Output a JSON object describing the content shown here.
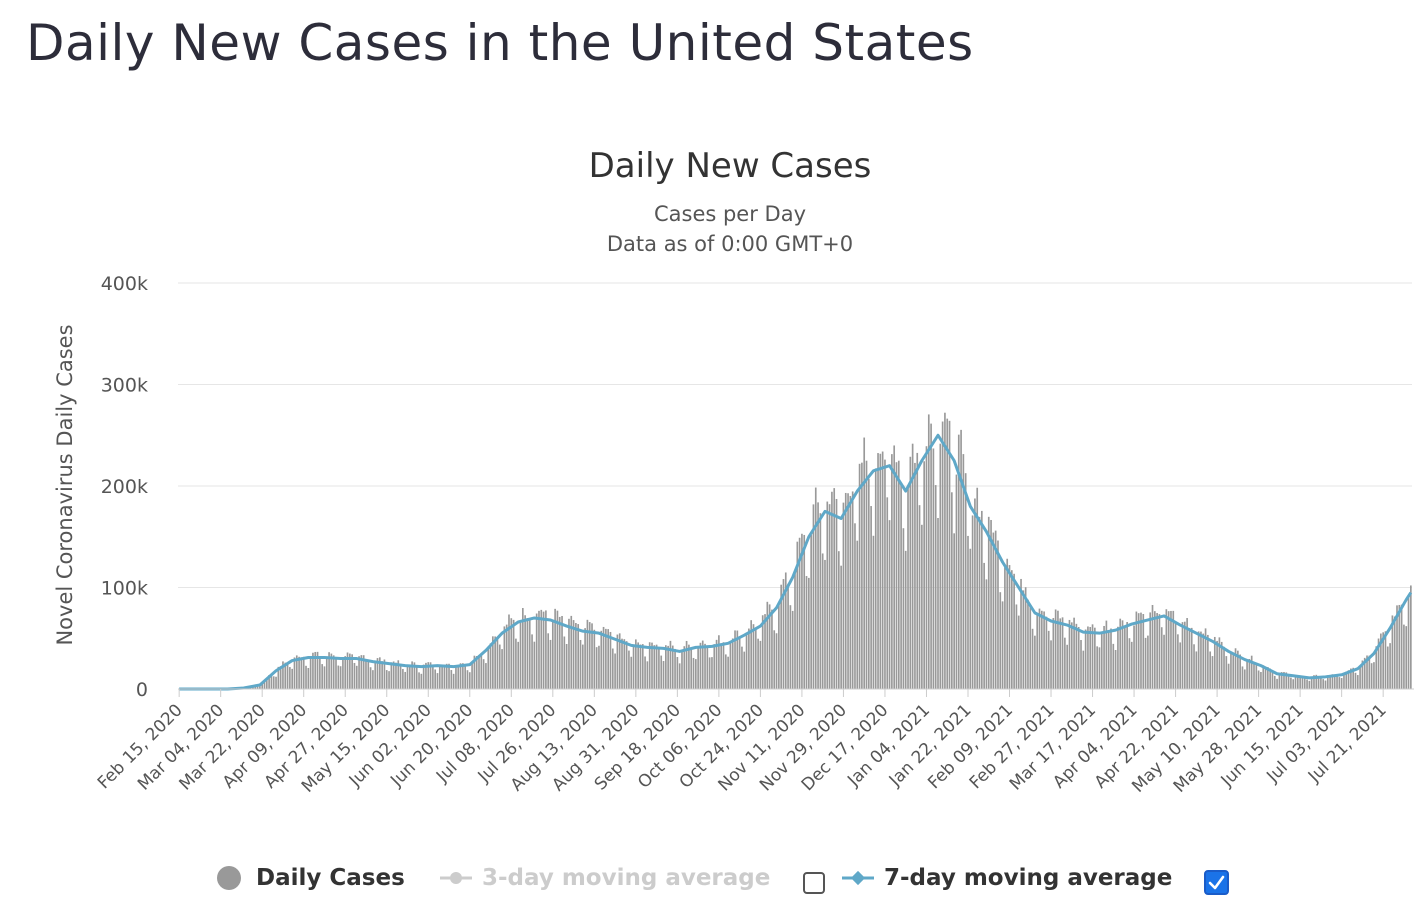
{
  "page": {
    "heading": "Daily New Cases in the United States"
  },
  "chart_data": {
    "type": "bar",
    "title": "Daily New Cases",
    "subtitle_lines": [
      "Cases per Day",
      "Data as of 0:00 GMT+0"
    ],
    "ylabel": "Novel Coronavirus Daily Cases",
    "ylim": [
      0,
      400000
    ],
    "y_ticks": [
      {
        "value": 0,
        "label": "0"
      },
      {
        "value": 100000,
        "label": "100k"
      },
      {
        "value": 200000,
        "label": "200k"
      },
      {
        "value": 300000,
        "label": "300k"
      },
      {
        "value": 400000,
        "label": "400k"
      }
    ],
    "x_ticks": [
      "Feb 15, 2020",
      "Mar 04, 2020",
      "Mar 22, 2020",
      "Apr 09, 2020",
      "Apr 27, 2020",
      "May 15, 2020",
      "Jun 02, 2020",
      "Jun 20, 2020",
      "Jul 08, 2020",
      "Jul 26, 2020",
      "Aug 13, 2020",
      "Aug 31, 2020",
      "Sep 18, 2020",
      "Oct 06, 2020",
      "Oct 24, 2020",
      "Nov 11, 2020",
      "Nov 29, 2020",
      "Dec 17, 2020",
      "Jan 04, 2021",
      "Jan 22, 2021",
      "Feb 09, 2021",
      "Feb 27, 2021",
      "Mar 17, 2021",
      "Apr 04, 2021",
      "Apr 22, 2021",
      "May 10, 2021",
      "May 28, 2021",
      "Jun 15, 2021",
      "Jul 03, 2021",
      "Jul 21, 2021"
    ],
    "x_start": "2020-02-15",
    "days_between_ticks": 18,
    "grid": true,
    "legend_position": "bottom",
    "colors": {
      "bars": "#999999",
      "line7": "#5fa8c8",
      "line3": "#cccccc",
      "checkbox_on": "#1a73e8",
      "grid": "#e6e6e6"
    },
    "series": [
      {
        "name": "Daily Cases",
        "style": "bar",
        "visible": true
      },
      {
        "name": "3-day moving average",
        "style": "line",
        "visible": false
      },
      {
        "name": "7-day moving average",
        "style": "line",
        "visible": true,
        "note": "weekly values",
        "x": [
          "2020-02-15",
          "2020-02-22",
          "2020-02-29",
          "2020-03-07",
          "2020-03-14",
          "2020-03-21",
          "2020-03-28",
          "2020-04-04",
          "2020-04-11",
          "2020-04-18",
          "2020-04-25",
          "2020-05-02",
          "2020-05-09",
          "2020-05-16",
          "2020-05-23",
          "2020-05-30",
          "2020-06-06",
          "2020-06-13",
          "2020-06-20",
          "2020-06-27",
          "2020-07-04",
          "2020-07-11",
          "2020-07-18",
          "2020-07-25",
          "2020-08-01",
          "2020-08-08",
          "2020-08-15",
          "2020-08-22",
          "2020-08-29",
          "2020-09-05",
          "2020-09-12",
          "2020-09-19",
          "2020-09-26",
          "2020-10-03",
          "2020-10-10",
          "2020-10-17",
          "2020-10-24",
          "2020-10-31",
          "2020-11-07",
          "2020-11-14",
          "2020-11-21",
          "2020-11-28",
          "2020-12-05",
          "2020-12-12",
          "2020-12-19",
          "2020-12-26",
          "2021-01-02",
          "2021-01-09",
          "2021-01-16",
          "2021-01-23",
          "2021-01-30",
          "2021-02-06",
          "2021-02-13",
          "2021-02-20",
          "2021-02-27",
          "2021-03-06",
          "2021-03-13",
          "2021-03-20",
          "2021-03-27",
          "2021-04-03",
          "2021-04-10",
          "2021-04-17",
          "2021-04-24",
          "2021-05-01",
          "2021-05-08",
          "2021-05-15",
          "2021-05-22",
          "2021-05-29",
          "2021-06-05",
          "2021-06-12",
          "2021-06-19",
          "2021-06-26",
          "2021-07-03",
          "2021-07-10",
          "2021-07-17",
          "2021-07-24",
          "2021-07-31",
          "2021-08-02"
        ],
        "values": [
          0,
          0,
          0,
          0,
          1000,
          4000,
          18000,
          28000,
          31000,
          31000,
          30000,
          30000,
          27000,
          25000,
          23000,
          22000,
          23000,
          22000,
          24000,
          38000,
          55000,
          66000,
          70000,
          68000,
          62000,
          57000,
          55000,
          49000,
          43000,
          41000,
          40000,
          37000,
          41000,
          42000,
          45000,
          53000,
          62000,
          80000,
          110000,
          150000,
          175000,
          168000,
          195000,
          215000,
          220000,
          195000,
          225000,
          250000,
          225000,
          180000,
          155000,
          125000,
          100000,
          75000,
          67000,
          63000,
          56000,
          55000,
          58000,
          64000,
          68000,
          72000,
          63000,
          55000,
          47000,
          37000,
          29000,
          23000,
          15000,
          13000,
          11000,
          12000,
          14000,
          20000,
          35000,
          60000,
          88000,
          95000
        ]
      }
    ]
  },
  "legend": {
    "daily_cases": "Daily Cases",
    "ma3": "3-day moving average",
    "ma7": "7-day moving average"
  }
}
